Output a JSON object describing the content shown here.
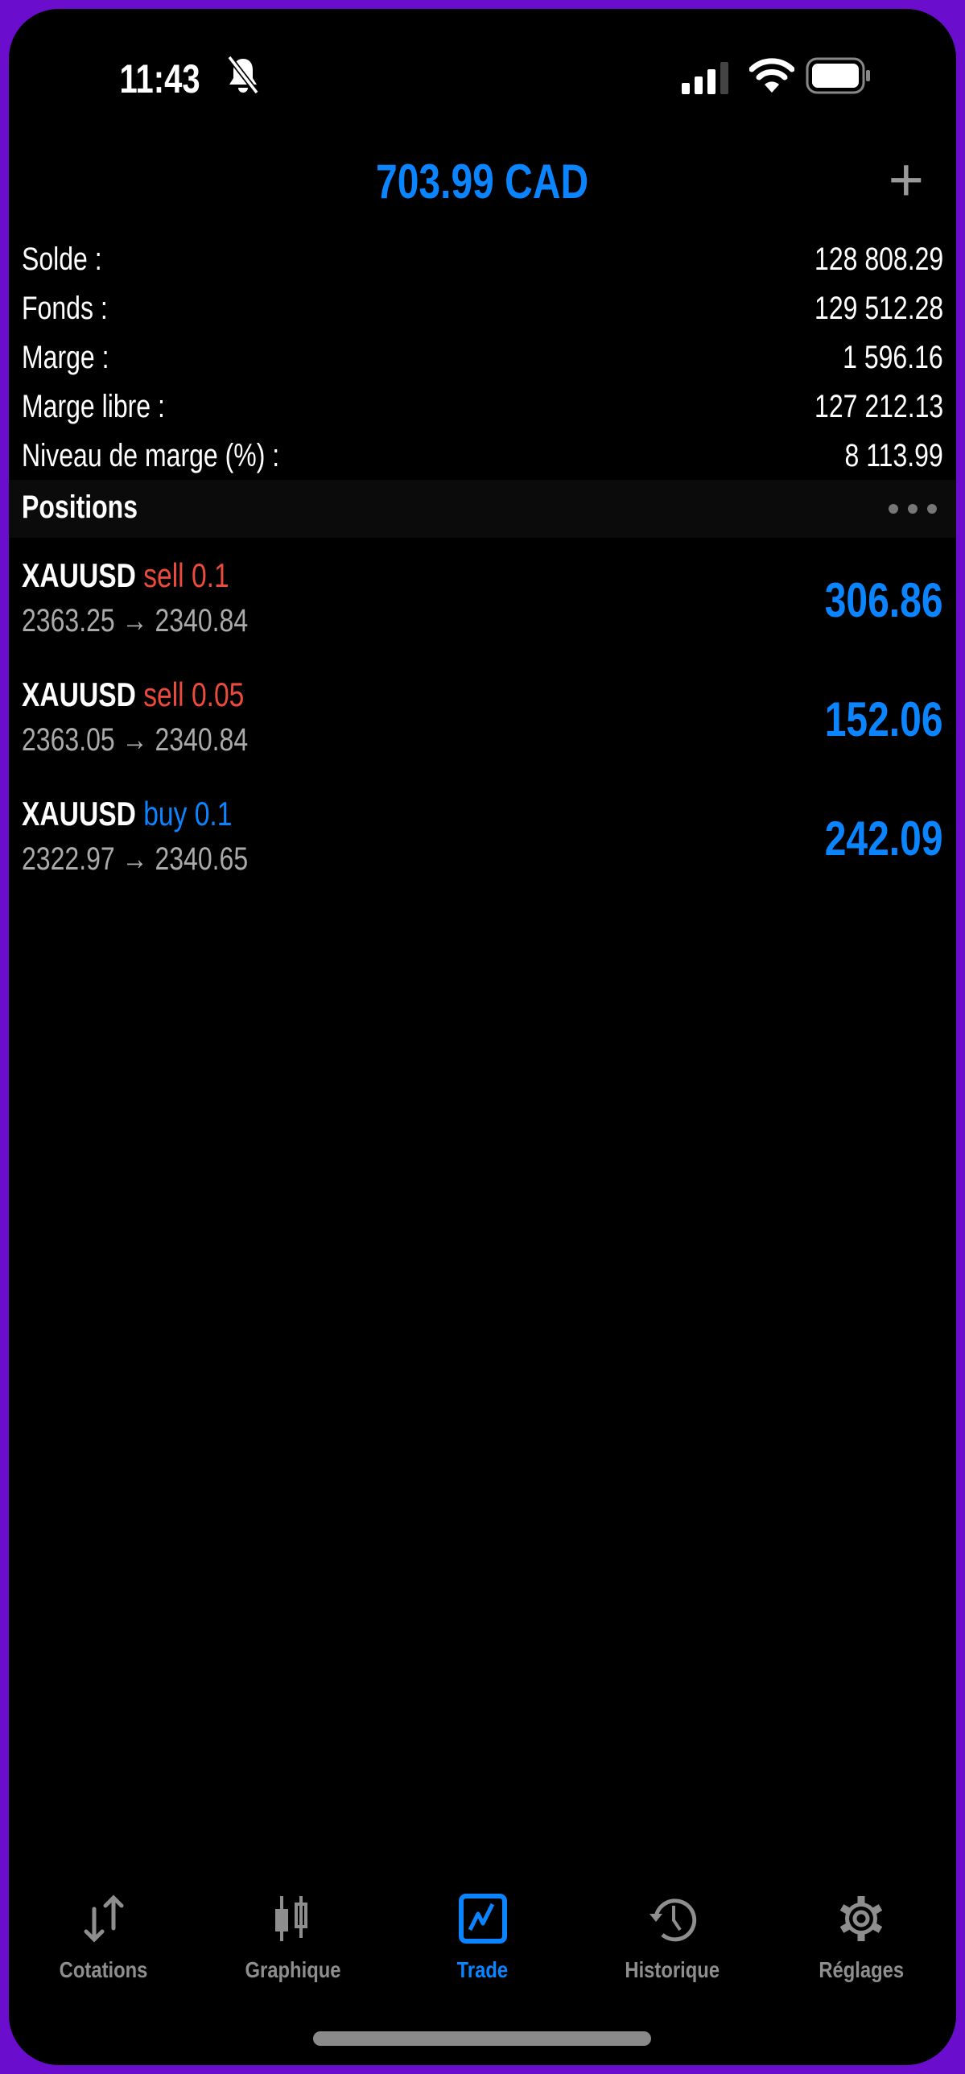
{
  "status_bar": {
    "time": "11:43",
    "icons": [
      "bell-slash-icon",
      "cellular-signal-icon",
      "wifi-icon",
      "battery-icon"
    ]
  },
  "header": {
    "title": "703.99 CAD",
    "add_icon": "plus-icon"
  },
  "account": [
    {
      "label": "Solde :",
      "value": "128 808.29"
    },
    {
      "label": "Fonds :",
      "value": "129 512.28"
    },
    {
      "label": "Marge :",
      "value": "1 596.16"
    },
    {
      "label": "Marge libre :",
      "value": "127 212.13"
    },
    {
      "label": "Niveau de marge (%) :",
      "value": "8 113.99"
    }
  ],
  "positions": {
    "title": "Positions",
    "more_icon": "more-dots-icon",
    "items": [
      {
        "symbol": "XAUUSD",
        "side": "sell 0.1",
        "type": "sell",
        "prices": "2363.25 → 2340.84",
        "profit": "306.86"
      },
      {
        "symbol": "XAUUSD",
        "side": "sell 0.05",
        "type": "sell",
        "prices": "2363.05 → 2340.84",
        "profit": "152.06"
      },
      {
        "symbol": "XAUUSD",
        "side": "buy 0.1",
        "type": "buy",
        "prices": "2322.97 → 2340.65",
        "profit": "242.09"
      }
    ]
  },
  "tabs": [
    {
      "label": "Cotations",
      "icon": "arrows-up-down-icon"
    },
    {
      "label": "Graphique",
      "icon": "candlestick-icon"
    },
    {
      "label": "Trade",
      "icon": "trade-chart-icon",
      "active": true
    },
    {
      "label": "Historique",
      "icon": "history-icon"
    },
    {
      "label": "Réglages",
      "icon": "gear-icon"
    }
  ],
  "colors": {
    "accent": "#0a84ff",
    "sell": "#ec4a3c",
    "frame": "#6a0dcc",
    "inactive": "#8e8e8e"
  }
}
